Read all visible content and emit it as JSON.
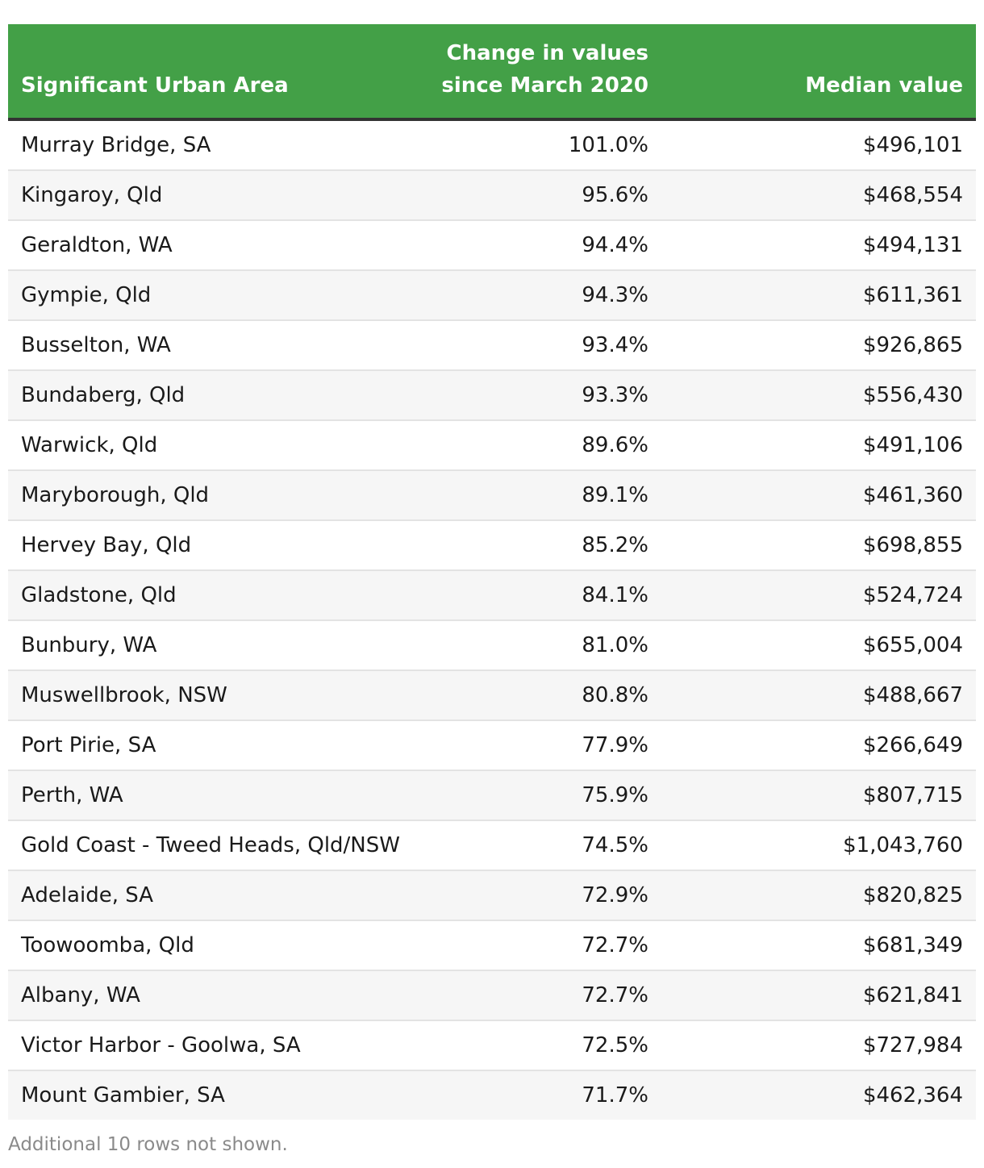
{
  "chart_data": {
    "type": "table",
    "columns": [
      "Significant Urban Area",
      "Change in values since March 2020",
      "Median value"
    ],
    "rows": [
      {
        "area": "Murray Bridge, SA",
        "change": "101.0%",
        "median": "$496,101"
      },
      {
        "area": "Kingaroy, Qld",
        "change": "95.6%",
        "median": "$468,554"
      },
      {
        "area": "Geraldton, WA",
        "change": "94.4%",
        "median": "$494,131"
      },
      {
        "area": "Gympie, Qld",
        "change": "94.3%",
        "median": "$611,361"
      },
      {
        "area": "Busselton, WA",
        "change": "93.4%",
        "median": "$926,865"
      },
      {
        "area": "Bundaberg, Qld",
        "change": "93.3%",
        "median": "$556,430"
      },
      {
        "area": "Warwick, Qld",
        "change": "89.6%",
        "median": "$491,106"
      },
      {
        "area": "Maryborough, Qld",
        "change": "89.1%",
        "median": "$461,360"
      },
      {
        "area": "Hervey Bay, Qld",
        "change": "85.2%",
        "median": "$698,855"
      },
      {
        "area": "Gladstone, Qld",
        "change": "84.1%",
        "median": "$524,724"
      },
      {
        "area": "Bunbury, WA",
        "change": "81.0%",
        "median": "$655,004"
      },
      {
        "area": "Muswellbrook, NSW",
        "change": "80.8%",
        "median": "$488,667"
      },
      {
        "area": "Port Pirie, SA",
        "change": "77.9%",
        "median": "$266,649"
      },
      {
        "area": "Perth, WA",
        "change": "75.9%",
        "median": "$807,715"
      },
      {
        "area": "Gold Coast - Tweed Heads, Qld/NSW",
        "change": "74.5%",
        "median": "$1,043,760"
      },
      {
        "area": "Adelaide, SA",
        "change": "72.9%",
        "median": "$820,825"
      },
      {
        "area": "Toowoomba, Qld",
        "change": "72.7%",
        "median": "$681,349"
      },
      {
        "area": "Albany, WA",
        "change": "72.7%",
        "median": "$621,841"
      },
      {
        "area": "Victor Harbor - Goolwa, SA",
        "change": "72.5%",
        "median": "$727,984"
      },
      {
        "area": "Mount Gambier, SA",
        "change": "71.7%",
        "median": "$462,364"
      }
    ]
  },
  "footnote": "Additional 10 rows not shown.",
  "colors": {
    "header_bg": "#43a047",
    "header_text": "#ffffff",
    "stripe": "#f6f6f6",
    "footnote": "#8a8a8a"
  }
}
